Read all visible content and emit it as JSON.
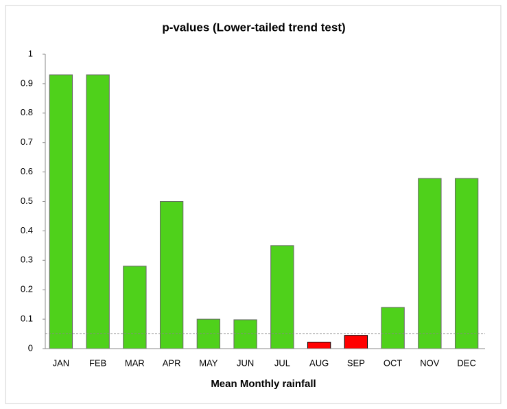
{
  "chart_data": {
    "type": "bar",
    "title": "p-values (Lower-tailed trend test)",
    "x_label": "Mean Monthly rainfall",
    "categories": [
      "JAN",
      "FEB",
      "MAR",
      "APR",
      "MAY",
      "JUN",
      "JUL",
      "AUG",
      "SEP",
      "OCT",
      "NOV",
      "DEC"
    ],
    "values": [
      0.93,
      0.93,
      0.28,
      0.5,
      0.1,
      0.098,
      0.35,
      0.022,
      0.045,
      0.14,
      0.578,
      0.578
    ],
    "colors": [
      "#4fd11b",
      "#4fd11b",
      "#4fd11b",
      "#4fd11b",
      "#4fd11b",
      "#4fd11b",
      "#4fd11b",
      "#ff0000",
      "#ff0000",
      "#4fd11b",
      "#4fd11b",
      "#4fd11b"
    ],
    "threshold": 0.05,
    "ylim": [
      0,
      1
    ],
    "yticks": [
      0,
      0.1,
      0.2,
      0.3,
      0.4,
      0.5,
      0.6,
      0.7,
      0.8,
      0.9,
      1
    ],
    "grid": false
  }
}
